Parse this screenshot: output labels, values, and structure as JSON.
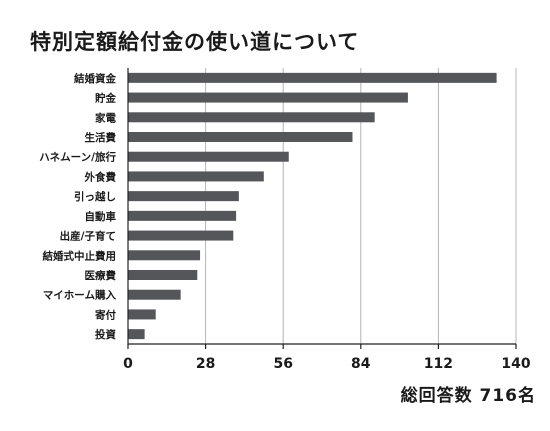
{
  "title": "特別定額給付金の使い道について",
  "total_label": "総回答数 716名",
  "chart_data": {
    "type": "bar",
    "orientation": "horizontal",
    "title": "特別定額給付金の使い道について",
    "categories": [
      "結婚資金",
      "貯金",
      "家電",
      "生活費",
      "ハネムーン/旅行",
      "外食費",
      "引っ越し",
      "自動車",
      "出産/子育て",
      "結婚式中止費用",
      "医療費",
      "マイホーム購入",
      "寄付",
      "投資"
    ],
    "values": [
      133,
      101,
      89,
      81,
      58,
      49,
      40,
      39,
      38,
      26,
      25,
      19,
      10,
      6
    ],
    "xticks": [
      0,
      28,
      56,
      84,
      112,
      140
    ],
    "xlim": [
      0,
      140
    ],
    "grid": true,
    "bar_color": "#55565a",
    "grid_color": "#b4b4b4"
  }
}
